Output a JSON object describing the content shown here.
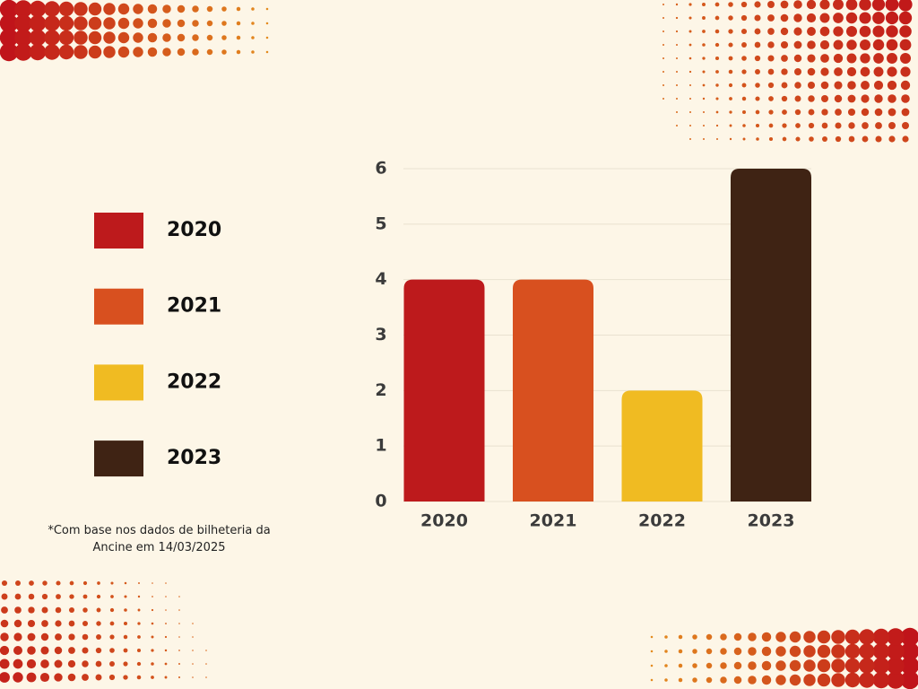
{
  "chart_data": {
    "type": "bar",
    "categories": [
      "2020",
      "2021",
      "2022",
      "2023"
    ],
    "values": [
      4,
      4,
      2,
      6
    ],
    "colors": [
      "#bd1a1c",
      "#d8501f",
      "#f0bb22",
      "#3f2314"
    ],
    "ylim": [
      0,
      6
    ],
    "yticks": [
      0,
      1,
      2,
      3,
      4,
      5,
      6
    ],
    "grid": true,
    "note": "*Com base nos dados de bilheteria da Ancine em 14/03/2025"
  }
}
